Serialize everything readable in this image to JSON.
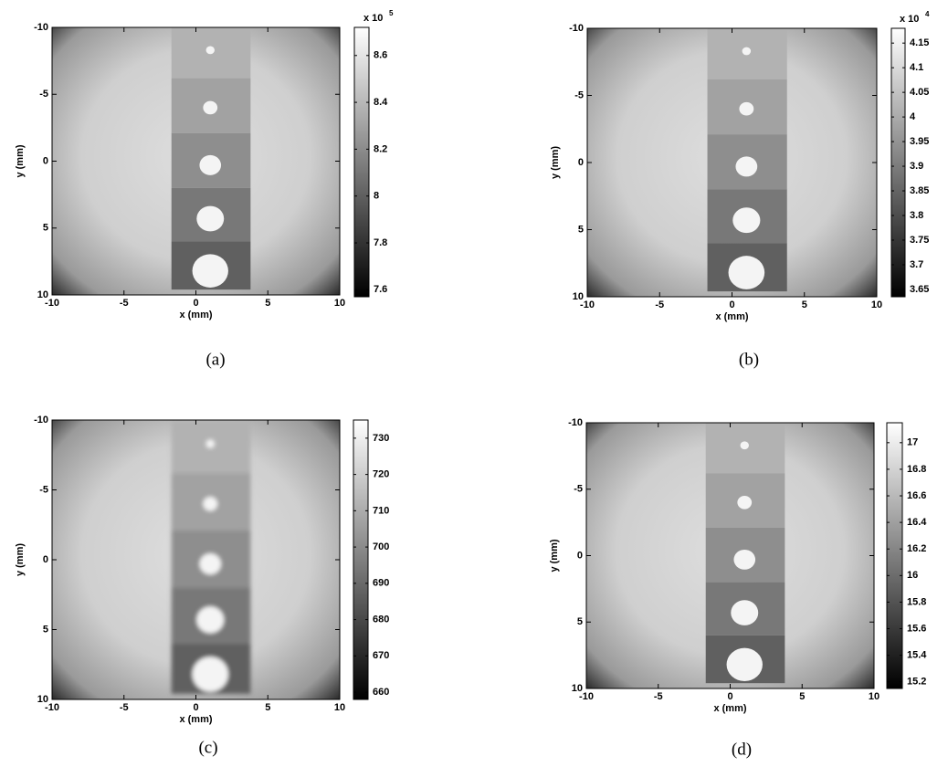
{
  "chart_data": [
    {
      "type": "heatmap",
      "xlabel": "x (mm)",
      "ylabel": "y (mm)",
      "xlim": [
        -10,
        10
      ],
      "ylim": [
        -10,
        10
      ],
      "y_reversed": true,
      "xticks": [
        -10,
        -5,
        0,
        5,
        10
      ],
      "yticks": [
        -10,
        -5,
        0,
        5,
        10
      ],
      "colormap": "gray",
      "colorbar": {
        "lim": [
          7.57,
          8.72
        ],
        "ticks": [
          7.6,
          7.8,
          8,
          8.2,
          8.4,
          8.6
        ],
        "multiplier": "x 10",
        "exponent": "5"
      },
      "caption": "(a)"
    },
    {
      "type": "heatmap",
      "xlabel": "x (mm)",
      "ylabel": "y (mm)",
      "xlim": [
        -10,
        10
      ],
      "ylim": [
        -10,
        10
      ],
      "y_reversed": true,
      "xticks": [
        -10,
        -5,
        0,
        5,
        10
      ],
      "yticks": [
        -10,
        -5,
        0,
        5,
        10
      ],
      "colormap": "gray",
      "colorbar": {
        "lim": [
          3.635,
          4.18
        ],
        "ticks": [
          3.65,
          3.7,
          3.75,
          3.8,
          3.85,
          3.9,
          3.95,
          4,
          4.05,
          4.1,
          4.15
        ],
        "multiplier": "x 10",
        "exponent": "4"
      },
      "caption": "(b)"
    },
    {
      "type": "heatmap",
      "xlabel": "x (mm)",
      "ylabel": "y (mm)",
      "xlim": [
        -10,
        10
      ],
      "ylim": [
        -10,
        10
      ],
      "y_reversed": true,
      "xticks": [
        -10,
        -5,
        0,
        5,
        10
      ],
      "yticks": [
        -10,
        -5,
        0,
        5,
        10
      ],
      "colormap": "gray",
      "blurred": true,
      "colorbar": {
        "lim": [
          658,
          735
        ],
        "ticks": [
          660,
          670,
          680,
          690,
          700,
          710,
          720,
          730
        ]
      },
      "caption": "(c)"
    },
    {
      "type": "heatmap",
      "xlabel": "x (mm)",
      "ylabel": "y (mm)",
      "xlim": [
        -10,
        10
      ],
      "ylim": [
        -10,
        10
      ],
      "y_reversed": true,
      "xticks": [
        -10,
        -5,
        0,
        5,
        10
      ],
      "yticks": [
        -10,
        -5,
        0,
        5,
        10
      ],
      "colormap": "gray",
      "colorbar": {
        "lim": [
          15.15,
          17.15
        ],
        "ticks": [
          15.2,
          15.4,
          15.6,
          15.8,
          16,
          16.2,
          16.4,
          16.6,
          16.8,
          17
        ]
      },
      "caption": "(d)"
    }
  ]
}
